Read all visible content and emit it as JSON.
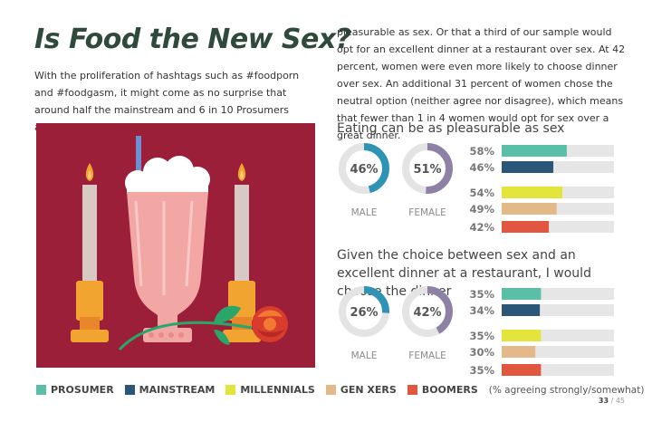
{
  "title": "Is Food the New Sex?",
  "intro_text": "With the proliferation of hashtags such as #foodporn and #foodgasm, it might come as no surprise that around half the mainstream and 6 in 10 Prosumers agree that eating can be as",
  "column_text": "pleasurable as sex. Or that a third of our sample would opt for an excellent dinner at a restaurant over sex. At 42 percent, women were even more likely to choose dinner over sex. An additional 31 percent of women chose the neutral option (neither agree nor disagree), which means that fewer than 1 in 4 women would opt for sex over a great dinner.",
  "colors": {
    "prosumer": "#5bbfa8",
    "mainstream": "#2c5677",
    "millennials": "#e4e53c",
    "genx": "#e3b98a",
    "boomers": "#e0563f",
    "male_donut": "#2e93b4",
    "female_donut": "#8f80a6",
    "track": "#e6e6e6",
    "illustration_bg": "#9b1f38"
  },
  "chart_data": [
    {
      "type": "bar",
      "title": "Eating can be as pleasurable as sex",
      "donuts": [
        {
          "label": "MALE",
          "value": 46,
          "display": "46%"
        },
        {
          "label": "FEMALE",
          "value": 51,
          "display": "51%"
        }
      ],
      "categories": [
        "PROSUMER",
        "MAINSTREAM",
        "MILLENNIALS",
        "GEN XERS",
        "BOOMERS"
      ],
      "values": [
        58,
        46,
        54,
        49,
        42
      ],
      "labels": [
        "58%",
        "46%",
        "54%",
        "49%",
        "42%"
      ],
      "ylim": [
        0,
        100
      ]
    },
    {
      "type": "bar",
      "title": "Given the choice between sex and an excellent dinner at a restaurant, I would choose the dinner",
      "donuts": [
        {
          "label": "MALE",
          "value": 26,
          "display": "26%"
        },
        {
          "label": "FEMALE",
          "value": 42,
          "display": "42%"
        }
      ],
      "categories": [
        "PROSUMER",
        "MAINSTREAM",
        "MILLENNIALS",
        "GEN XERS",
        "BOOMERS"
      ],
      "values": [
        35,
        34,
        35,
        30,
        35
      ],
      "labels": [
        "35%",
        "34%",
        "35%",
        "30%",
        "35%"
      ],
      "ylim": [
        0,
        100
      ]
    }
  ],
  "legend": {
    "items": [
      "PROSUMER",
      "MAINSTREAM",
      "MILLENNIALS",
      "GEN XERS",
      "BOOMERS"
    ],
    "note": "(% agreeing strongly/somewhat)"
  },
  "page": {
    "current": "33",
    "sep_total": "/ 45"
  }
}
